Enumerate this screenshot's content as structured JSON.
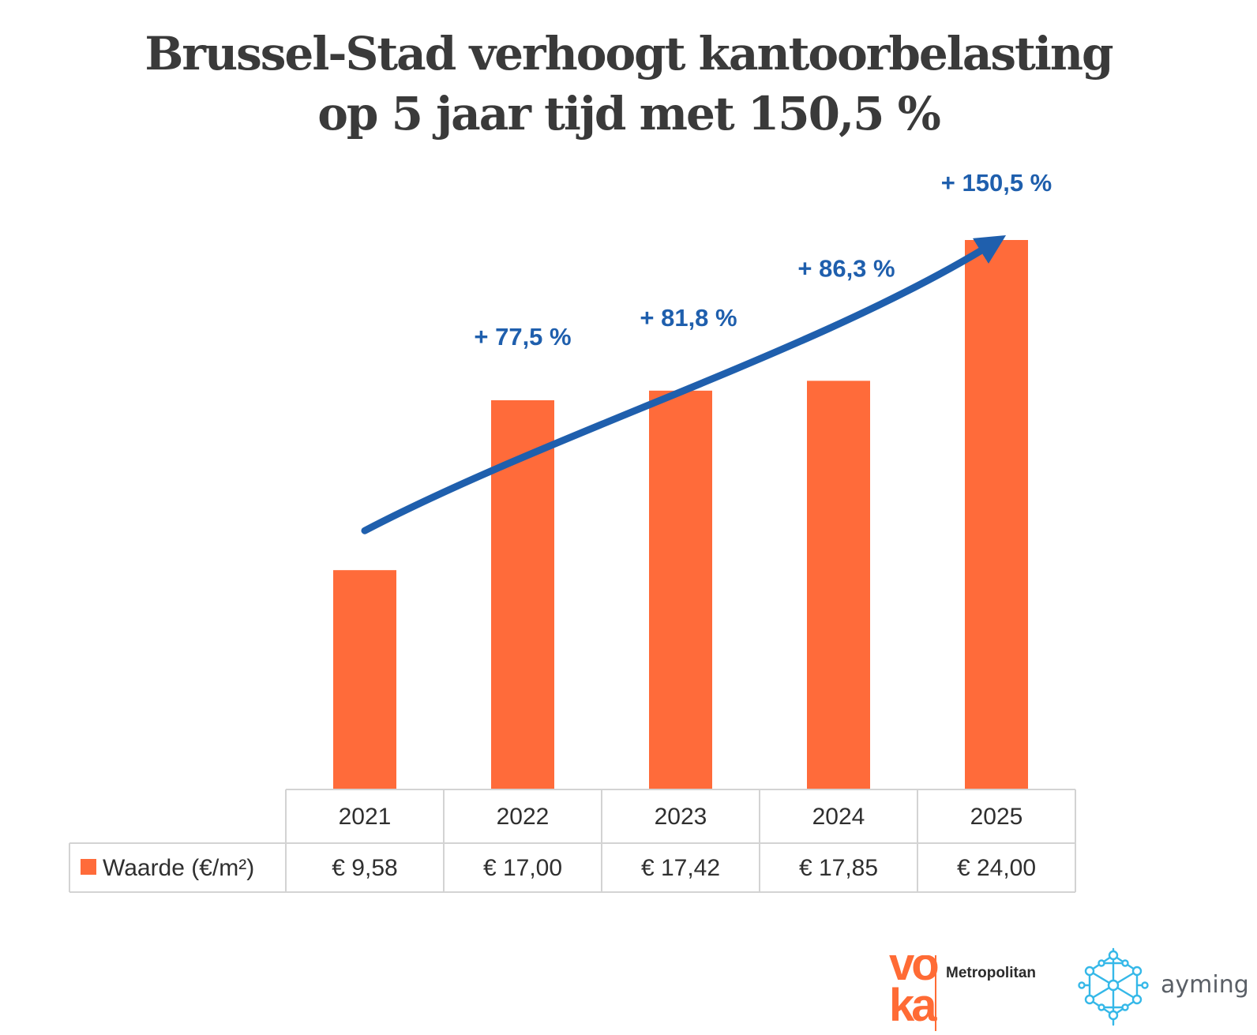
{
  "title": {
    "line1": "Brussel-Stad verhoogt kantoorbelasting",
    "line2": "op 5 jaar tijd met 150,5 %"
  },
  "chart_data": {
    "type": "bar",
    "categories": [
      "2021",
      "2022",
      "2023",
      "2024",
      "2025"
    ],
    "series": [
      {
        "name": "Waarde (€/m²)",
        "values": [
          9.58,
          17.0,
          17.42,
          17.85,
          24.0
        ],
        "value_labels": [
          "€ 9,58",
          "€ 17,00",
          "€ 17,42",
          "€ 17,85",
          "€ 24,00"
        ],
        "color": "#ff6b3a"
      }
    ],
    "annotations": [
      {
        "category": "2022",
        "text": "+ 77,5 %"
      },
      {
        "category": "2023",
        "text": "+ 81,8 %"
      },
      {
        "category": "2024",
        "text": "+ 86,3 %"
      },
      {
        "category": "2025",
        "text": "+ 150,5 %"
      }
    ],
    "annotation_color": "#1f5fad",
    "trend_arrow": true,
    "data_table": true,
    "grid": false,
    "ylim": [
      0,
      24
    ]
  },
  "logos": {
    "voka": {
      "mark": "vo ka",
      "label": "Metropolitan",
      "color": "#ff6b35"
    },
    "ayming": {
      "label": "ayming",
      "color": "#35b8e8"
    }
  }
}
